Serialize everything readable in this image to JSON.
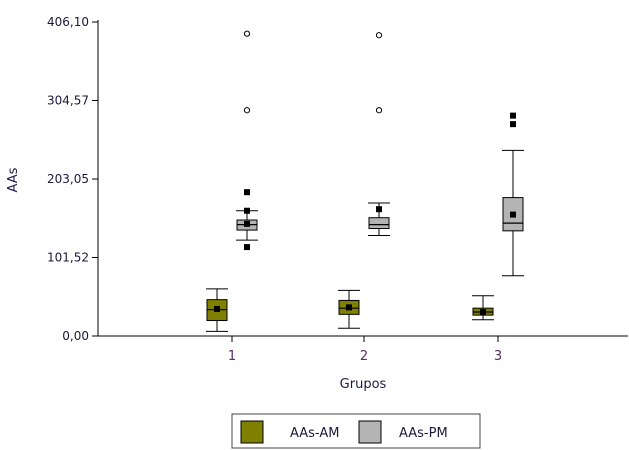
{
  "chart_data": {
    "type": "box",
    "title": "",
    "xlabel": "Grupos",
    "ylabel": "AAs",
    "categories": [
      "1",
      "2",
      "3"
    ],
    "y_ticks": [
      "0,00",
      "101,52",
      "203,05",
      "304,57",
      "406,10"
    ],
    "y_tick_values": [
      0,
      101.52,
      203.05,
      304.57,
      406.1
    ],
    "ylim": [
      0,
      406.1
    ],
    "grid": false,
    "legend_position": "bottom",
    "series": [
      {
        "name": "AAs-AM",
        "color": "#808000",
        "boxes": [
          {
            "category": "1",
            "whisker_low": 6,
            "q1": 20,
            "median": 34,
            "q3": 47,
            "whisker_high": 61,
            "mean": 35,
            "extremes": []
          },
          {
            "category": "2",
            "whisker_low": 10,
            "q1": 28,
            "median": 36,
            "q3": 46,
            "whisker_high": 59,
            "mean": 37,
            "extremes": []
          },
          {
            "category": "3",
            "whisker_low": 21,
            "q1": 27,
            "median": 31,
            "q3": 36,
            "whisker_high": 52,
            "mean": 31,
            "extremes": []
          }
        ]
      },
      {
        "name": "AAs-PM",
        "color": "#b4b4b4",
        "boxes": [
          {
            "category": "1",
            "whisker_low": 124,
            "q1": 137,
            "median": 144,
            "q3": 150,
            "whisker_high": 162,
            "mean": 145,
            "extremes": [
              115,
              162,
              186
            ],
            "outliers": [
              292,
              391
            ]
          },
          {
            "category": "2",
            "whisker_low": 130,
            "q1": 139,
            "median": 144,
            "q3": 153,
            "whisker_high": 172,
            "mean": 164,
            "extremes": [],
            "outliers": [
              292,
              389
            ]
          },
          {
            "category": "3",
            "whisker_low": 78,
            "q1": 136,
            "median": 146,
            "q3": 179,
            "whisker_high": 240,
            "mean": 157,
            "extremes": [
              274,
              285
            ],
            "outliers": []
          }
        ]
      }
    ]
  }
}
